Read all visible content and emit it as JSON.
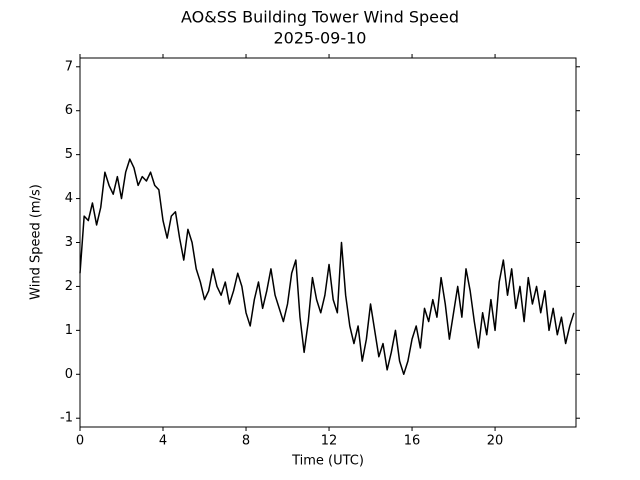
{
  "chart_data": {
    "type": "line",
    "title": "AO&SS Building Tower Wind Speed",
    "subtitle": "2025-09-10",
    "x_label": "Time (UTC)",
    "y_label": "Wind Speed (m/s)",
    "xlim": [
      0,
      23.9
    ],
    "ylim": [
      -1.2,
      7.2
    ],
    "xticks": [
      0,
      4,
      8,
      12,
      16,
      20
    ],
    "yticks": [
      -1,
      0,
      1,
      2,
      3,
      4,
      5,
      6,
      7
    ],
    "grid": false,
    "series": [
      {
        "color": "#000000",
        "x": [
          0.0,
          0.2,
          0.4,
          0.6,
          0.8,
          1.0,
          1.2,
          1.4,
          1.6,
          1.8,
          2.0,
          2.2,
          2.4,
          2.6,
          2.8,
          3.0,
          3.2,
          3.4,
          3.6,
          3.8,
          4.0,
          4.2,
          4.4,
          4.6,
          4.8,
          5.0,
          5.2,
          5.4,
          5.6,
          5.8,
          6.0,
          6.2,
          6.4,
          6.6,
          6.8,
          7.0,
          7.2,
          7.4,
          7.6,
          7.8,
          8.0,
          8.2,
          8.4,
          8.6,
          8.8,
          9.0,
          9.2,
          9.4,
          9.6,
          9.8,
          10.0,
          10.2,
          10.4,
          10.6,
          10.8,
          11.0,
          11.2,
          11.4,
          11.6,
          11.8,
          12.0,
          12.2,
          12.4,
          12.6,
          12.8,
          13.0,
          13.2,
          13.4,
          13.6,
          13.8,
          14.0,
          14.2,
          14.4,
          14.6,
          14.8,
          15.0,
          15.2,
          15.4,
          15.6,
          15.8,
          16.0,
          16.2,
          16.4,
          16.6,
          16.8,
          17.0,
          17.2,
          17.4,
          17.6,
          17.8,
          18.0,
          18.2,
          18.4,
          18.6,
          18.8,
          19.0,
          19.2,
          19.4,
          19.6,
          19.8,
          20.0,
          20.2,
          20.4,
          20.6,
          20.8,
          21.0,
          21.2,
          21.4,
          21.6,
          21.8,
          22.0,
          22.2,
          22.4,
          22.6,
          22.8,
          23.0,
          23.2,
          23.4,
          23.6,
          23.8
        ],
        "values": [
          2.3,
          3.6,
          3.5,
          3.9,
          3.4,
          3.8,
          4.6,
          4.3,
          4.1,
          4.5,
          4.0,
          4.6,
          4.9,
          4.7,
          4.3,
          4.5,
          4.4,
          4.6,
          4.3,
          4.2,
          3.5,
          3.1,
          3.6,
          3.7,
          3.1,
          2.6,
          3.3,
          3.0,
          2.4,
          2.1,
          1.7,
          1.9,
          2.4,
          2.0,
          1.8,
          2.1,
          1.6,
          1.9,
          2.3,
          2.0,
          1.4,
          1.1,
          1.7,
          2.1,
          1.5,
          1.9,
          2.4,
          1.8,
          1.5,
          1.2,
          1.6,
          2.3,
          2.6,
          1.3,
          0.5,
          1.2,
          2.2,
          1.7,
          1.4,
          1.8,
          2.5,
          1.7,
          1.4,
          3.0,
          1.8,
          1.1,
          0.7,
          1.1,
          0.3,
          0.8,
          1.6,
          1.0,
          0.4,
          0.7,
          0.1,
          0.5,
          1.0,
          0.3,
          0.0,
          0.3,
          0.8,
          1.1,
          0.6,
          1.5,
          1.2,
          1.7,
          1.3,
          2.2,
          1.6,
          0.8,
          1.4,
          2.0,
          1.3,
          2.4,
          1.9,
          1.2,
          0.6,
          1.4,
          0.9,
          1.7,
          1.0,
          2.1,
          2.6,
          1.8,
          2.4,
          1.5,
          2.0,
          1.2,
          2.2,
          1.6,
          2.0,
          1.4,
          1.9,
          1.0,
          1.5,
          0.9,
          1.3,
          0.7,
          1.1,
          1.4
        ]
      }
    ]
  }
}
